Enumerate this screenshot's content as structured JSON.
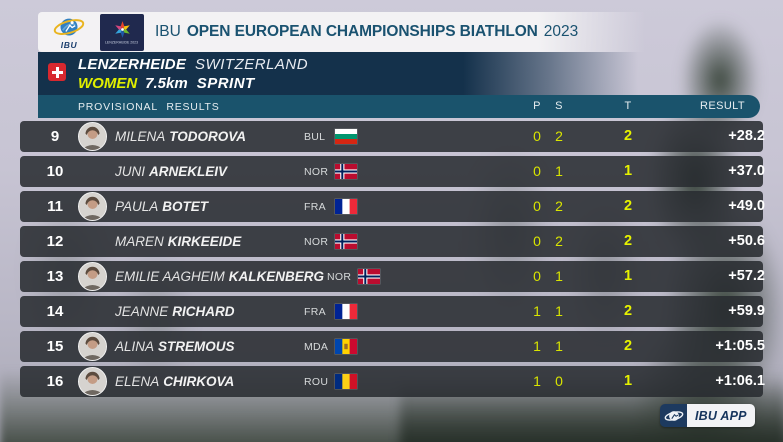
{
  "header": {
    "ibu_logo_text": "IBU",
    "event_logo_text": "LENZERHEIDE 2023",
    "title_prefix": "IBU",
    "title_main": "OPEN EUROPEAN CHAMPIONSHIPS BIATHLON",
    "title_year": "2023"
  },
  "event": {
    "location": "LENZERHEIDE",
    "country": "SWITZERLAND",
    "category": "WOMEN",
    "distance": "7.5km",
    "discipline": "SPRINT"
  },
  "results": {
    "status_label": "PROVISIONAL RESULTS",
    "columns": {
      "p": "P",
      "s": "S",
      "t": "T",
      "result": "RESULT"
    },
    "rows": [
      {
        "rank": "9",
        "first": "MILENA",
        "last": "TODOROVA",
        "nat": "BUL",
        "photo": true,
        "p": "0",
        "s": "2",
        "t": "2",
        "result": "+28.2"
      },
      {
        "rank": "10",
        "first": "JUNI",
        "last": "ARNEKLEIV",
        "nat": "NOR",
        "photo": false,
        "p": "0",
        "s": "1",
        "t": "1",
        "result": "+37.0"
      },
      {
        "rank": "11",
        "first": "PAULA",
        "last": "BOTET",
        "nat": "FRA",
        "photo": true,
        "p": "0",
        "s": "2",
        "t": "2",
        "result": "+49.0"
      },
      {
        "rank": "12",
        "first": "MAREN",
        "last": "KIRKEEIDE",
        "nat": "NOR",
        "photo": false,
        "p": "0",
        "s": "2",
        "t": "2",
        "result": "+50.6"
      },
      {
        "rank": "13",
        "first": "EMILIE AAGHEIM",
        "last": "KALKENBERG",
        "nat": "NOR",
        "photo": true,
        "p": "0",
        "s": "1",
        "t": "1",
        "result": "+57.2"
      },
      {
        "rank": "14",
        "first": "JEANNE",
        "last": "RICHARD",
        "nat": "FRA",
        "photo": false,
        "p": "1",
        "s": "1",
        "t": "2",
        "result": "+59.9"
      },
      {
        "rank": "15",
        "first": "ALINA",
        "last": "STREMOUS",
        "nat": "MDA",
        "photo": true,
        "p": "1",
        "s": "1",
        "t": "2",
        "result": "+1:05.5"
      },
      {
        "rank": "16",
        "first": "ELENA",
        "last": "CHIRKOVA",
        "nat": "ROU",
        "photo": true,
        "p": "1",
        "s": "0",
        "t": "1",
        "result": "+1:06.1"
      }
    ]
  },
  "footer": {
    "app_badge": "IBU APP"
  },
  "colors": {
    "accent_yellow": "#d9e500",
    "total_yellow": "#e6f200",
    "panel_navy": "#14314b",
    "strip_teal": "#1a536c",
    "title_teal": "#1a5270",
    "row_background": "rgba(40,44,48,0.87)",
    "swiss_red": "#d7282f"
  },
  "flags": {
    "BUL": {
      "orientation": "horizontal",
      "colors": [
        "#ffffff",
        "#00966e",
        "#d62612"
      ]
    },
    "NOR": {
      "type": "nordic",
      "bg": "#ba0c2f",
      "cross": "#ffffff",
      "inner": "#00205b"
    },
    "FRA": {
      "orientation": "vertical",
      "colors": [
        "#002395",
        "#ffffff",
        "#ed2939"
      ]
    },
    "MDA": {
      "orientation": "vertical",
      "colors": [
        "#0046ae",
        "#ffd200",
        "#cc092f"
      ],
      "emblem": "#8a5a2b"
    },
    "ROU": {
      "orientation": "vertical",
      "colors": [
        "#002b7f",
        "#fcd116",
        "#ce1126"
      ]
    }
  }
}
